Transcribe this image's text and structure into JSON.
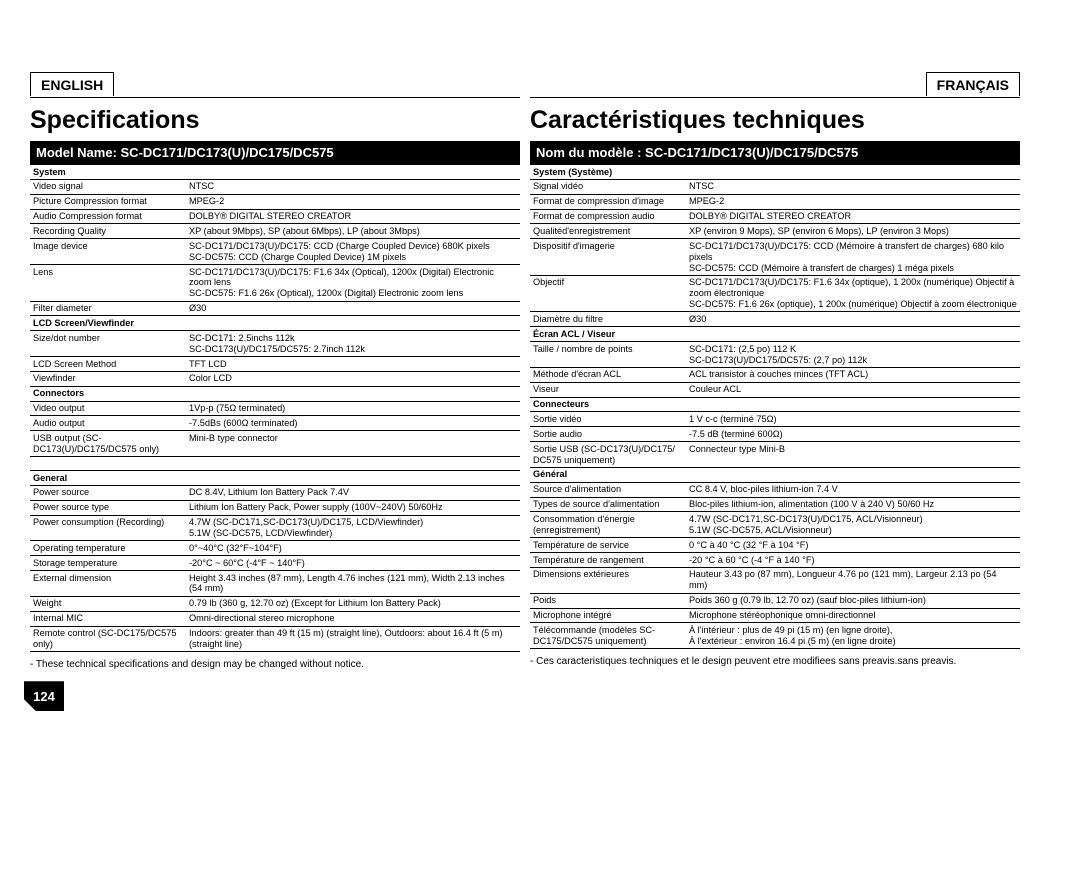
{
  "page_number": "124",
  "left": {
    "lang": "ENGLISH",
    "title": "Specifications",
    "model_label": "Model Name: SC-DC171/DC173(U)/DC175/DC575",
    "footnote": "- These technical specifications and design may be changed without notice.",
    "sections": [
      {
        "head": "System",
        "rows": [
          [
            "Video signal",
            "NTSC"
          ],
          [
            "Picture Compression format",
            "MPEG-2"
          ],
          [
            "Audio Compression format",
            "DOLBY®  DIGITAL  STEREO  CREATOR"
          ],
          [
            "Recording Quality",
            "XP (about 9Mbps), SP (about 6Mbps), LP (about 3Mbps)"
          ],
          [
            "Image device",
            "SC-DC171/DC173(U)/DC175: CCD (Charge Coupled Device) 680K pixels\nSC-DC575: CCD (Charge Coupled Device) 1M pixels"
          ],
          [
            "Lens",
            "SC-DC171/DC173(U)/DC175: F1.6 34x (Optical), 1200x (Digital) Electronic zoom lens\nSC-DC575: F1.6 26x (Optical), 1200x (Digital) Electronic zoom lens"
          ],
          [
            "Filter diameter",
            "Ø30"
          ]
        ]
      },
      {
        "head": "LCD Screen/Viewfinder",
        "rows": [
          [
            "Size/dot number",
            "SC-DC171: 2.5inchs 112k\nSC-DC173(U)/DC175/DC575: 2.7inch 112k"
          ],
          [
            "LCD Screen Method",
            "TFT LCD"
          ],
          [
            "Viewfinder",
            "Color LCD"
          ]
        ]
      },
      {
        "head": "Connectors",
        "rows": [
          [
            "Video output",
            "1Vp-p (75Ω terminated)"
          ],
          [
            "Audio output",
            "-7.5dBs (600Ω terminated)"
          ],
          [
            "USB output (SC-DC173(U)/DC175/DC575 only)",
            "Mini-B type connector"
          ]
        ]
      },
      {
        "head": "General",
        "rows": [
          [
            "Power source",
            "DC 8.4V, Lithium Ion Battery Pack 7.4V"
          ],
          [
            "Power source type",
            "Lithium Ion Battery Pack, Power supply (100V~240V) 50/60Hz"
          ],
          [
            "Power consumption (Recording)",
            "4.7W (SC-DC171,SC-DC173(U)/DC175, LCD/Viewfinder)\n5.1W (SC-DC575, LCD/Viewfinder)"
          ],
          [
            "Operating temperature",
            "0°~40°C (32°F~104°F)"
          ],
          [
            "Storage temperature",
            "-20°C ~ 60°C (-4°F ~ 140°F)"
          ],
          [
            "External dimension",
            "Height 3.43 inches (87 mm), Length 4.76 inches (121 mm), Width 2.13 inches (54 mm)"
          ],
          [
            "Weight",
            "0.79 lb (360 g, 12.70 oz) (Except for Lithium Ion Battery Pack)"
          ],
          [
            "Internal MIC",
            "Omni-directional stereo microphone"
          ],
          [
            "Remote control (SC-DC175/DC575 only)",
            "Indoors: greater than 49 ft (15 m) (straight line), Outdoors: about 16.4 ft (5 m) (straight line)"
          ]
        ]
      }
    ]
  },
  "right": {
    "lang": "FRANÇAIS",
    "title": "Caractéristiques techniques",
    "model_label": "Nom du modèle : SC-DC171/DC173(U)/DC175/DC575",
    "footnote": "- Ces caracteristiques techniques et le design peuvent etre modifiees sans preavis.sans preavis.",
    "sections": [
      {
        "head": "System (Système)",
        "rows": [
          [
            "Signal vidéo",
            "NTSC"
          ],
          [
            "Format de compression d'image",
            "MPEG-2"
          ],
          [
            "Format de compression audio",
            "DOLBY®  DIGITAL  STEREO  CREATOR"
          ],
          [
            "Qualitéd'enregistrement",
            "XP (environ 9 Mops), SP (environ 6 Mops), LP (environ 3 Mops)"
          ],
          [
            "Dispositif d'imagerie",
            "SC-DC171/DC173(U)/DC175: CCD (Mémoire à transfert de charges) 680 kilo pixels\nSC-DC575: CCD (Mémoire à transfert de charges) 1 méga pixels"
          ],
          [
            "Objectif",
            "SC-DC171/DC173(U)/DC175: F1.6 34x (optique), 1 200x (numérique) Objectif à zoom électronique\nSC-DC575: F1.6 26x (optique), 1 200x (numérique) Objectif à zoom électronique"
          ],
          [
            "Diamètre du filtre",
            "Ø30"
          ]
        ]
      },
      {
        "head": "Écran ACL / Viseur",
        "rows": [
          [
            "Taille / nombre de points",
            "SC-DC171: (2,5 po) 112 K\nSC-DC173(U)/DC175/DC575: (2,7 po) 112k"
          ],
          [
            "Méthode d'écran ACL",
            "ACL transistor à couches minces (TFT ACL)"
          ],
          [
            "Viseur",
            "Couleur ACL"
          ]
        ]
      },
      {
        "head": "Connecteurs",
        "rows": [
          [
            "Sortie vidéo",
            "1 V c-c (terminé 75Ω)"
          ],
          [
            "Sortie audio",
            "-7.5 dB (terminé 600Ω)"
          ],
          [
            "Sortie USB (SC-DC173(U)/DC175/ DC575 uniquement)",
            "Connecteur type Mini-B"
          ]
        ]
      },
      {
        "head": "Général",
        "rows": [
          [
            "Source d'alimentation",
            "CC 8.4 V, bloc-piles lithium-ion 7.4 V"
          ],
          [
            "Types de source d'alimentation",
            "Bloc-piles lithium-ion, alimentation (100 V à 240 V) 50/60 Hz"
          ],
          [
            "Consommation d'énergie (enregistrement)",
            "4.7W (SC-DC171,SC-DC173(U)/DC175, ACL/Visionneur)\n5.1W (SC-DC575, ACL/Visionneur)"
          ],
          [
            "Température de service",
            "0 °C à 40 °C (32 °F à 104 °F)"
          ],
          [
            "Température de rangement",
            "-20 °C à 60 °C (-4 °F à 140 °F)"
          ],
          [
            "Dimensions extérieures",
            "Hauteur 3.43 po (87 mm), Longueur 4.76 po (121 mm), Largeur 2.13 po (54 mm)"
          ],
          [
            "Poids",
            "Poids 360 g (0.79 lb, 12.70 oz) (sauf bloc-piles lithium-ion)"
          ],
          [
            "Microphone intégré",
            "Microphone stéréophonique omni-directionnel"
          ],
          [
            "Télécommande (modèles SC-DC175/DC575 uniquement)",
            "À l'intérieur : plus de 49 pi (15 m) (en ligne droite),\nÀ l'extérieur : environ 16.4 pi (5 m) (en ligne droite)"
          ]
        ]
      }
    ]
  }
}
